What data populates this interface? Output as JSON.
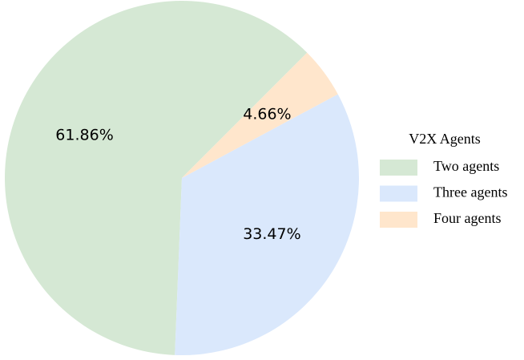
{
  "chart_data": {
    "type": "pie",
    "categories": [
      "Two agents",
      "Three agents",
      "Four agents"
    ],
    "values": [
      61.86,
      33.47,
      4.66
    ],
    "value_labels": [
      "61.86%",
      "33.47%",
      "4.66%"
    ],
    "colors": [
      "#d5e8d4",
      "#dae8fc",
      "#ffe6cc"
    ],
    "legend_title": "V2X Agents",
    "legend": "right"
  }
}
